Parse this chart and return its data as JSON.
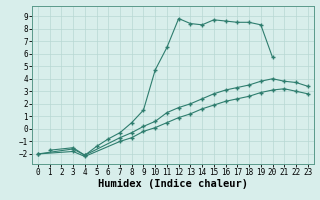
{
  "title": "",
  "xlabel": "Humidex (Indice chaleur)",
  "ylabel": "",
  "xlim": [
    -0.5,
    23.5
  ],
  "ylim": [
    -2.8,
    9.8
  ],
  "xticks": [
    0,
    1,
    2,
    3,
    4,
    5,
    6,
    7,
    8,
    9,
    10,
    11,
    12,
    13,
    14,
    15,
    16,
    17,
    18,
    19,
    20,
    21,
    22,
    23
  ],
  "yticks": [
    -2,
    -1,
    0,
    1,
    2,
    3,
    4,
    5,
    6,
    7,
    8,
    9
  ],
  "line1_x": [
    1,
    3,
    4,
    5,
    6,
    7,
    8,
    9,
    10,
    11,
    12,
    13,
    14,
    15,
    16,
    17,
    18,
    19,
    20
  ],
  "line1_y": [
    -1.7,
    -1.5,
    -2.1,
    -1.4,
    -0.8,
    -0.3,
    0.5,
    1.5,
    4.7,
    6.5,
    8.8,
    8.4,
    8.3,
    8.7,
    8.6,
    8.5,
    8.5,
    8.3,
    5.7
  ],
  "line2_x": [
    0,
    3,
    4,
    7,
    8,
    9,
    10,
    11,
    12,
    13,
    14,
    15,
    16,
    17,
    18,
    19,
    20,
    21,
    22,
    23
  ],
  "line2_y": [
    -2.0,
    -1.6,
    -2.1,
    -0.7,
    -0.3,
    0.2,
    0.6,
    1.3,
    1.7,
    2.0,
    2.4,
    2.8,
    3.1,
    3.3,
    3.5,
    3.8,
    4.0,
    3.8,
    3.7,
    3.4
  ],
  "line3_x": [
    0,
    3,
    4,
    7,
    8,
    9,
    10,
    11,
    12,
    13,
    14,
    15,
    16,
    17,
    18,
    19,
    20,
    21,
    22,
    23
  ],
  "line3_y": [
    -2.0,
    -1.8,
    -2.2,
    -1.0,
    -0.7,
    -0.2,
    0.1,
    0.5,
    0.9,
    1.2,
    1.6,
    1.9,
    2.2,
    2.4,
    2.6,
    2.9,
    3.1,
    3.2,
    3.0,
    2.8
  ],
  "line_color": "#2e7d6e",
  "bg_color": "#d8eeeb",
  "grid_color": "#b8d8d4",
  "tick_fontsize": 5.5,
  "label_fontsize": 7.5
}
